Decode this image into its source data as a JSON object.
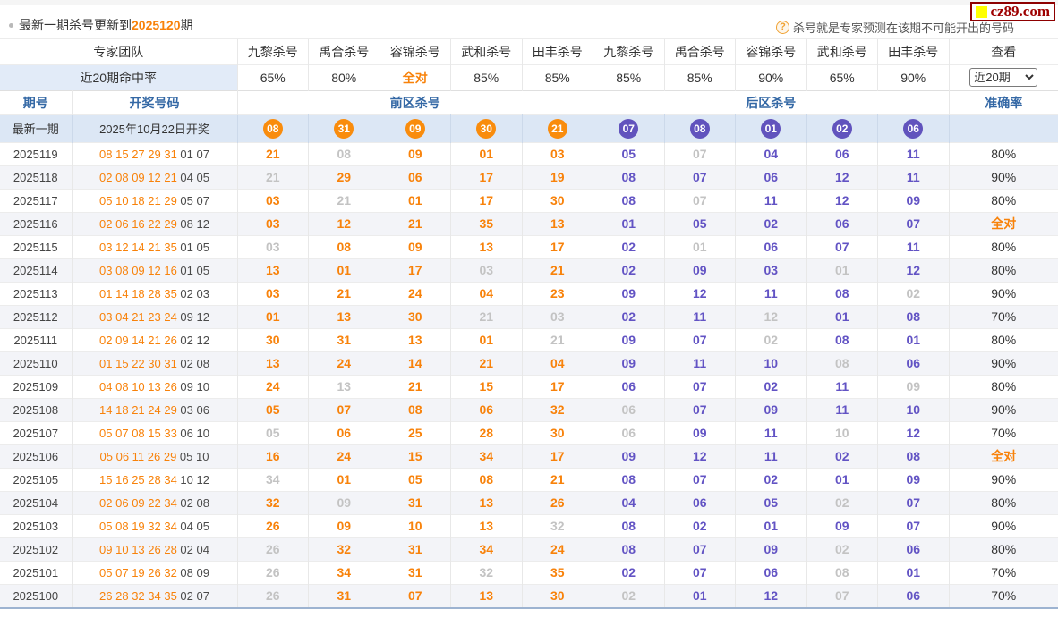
{
  "top_bar": {
    "update_prefix": "最新一期杀号更新到",
    "update_period": "2025120",
    "update_suffix": "期",
    "logo_text": "cz89.com",
    "tip_icon": "?",
    "tip_text": "杀号就是专家预测在该期不可能开出的号码"
  },
  "colors": {
    "accent_orange": "#f8820a",
    "ball_orange": "#f98c0d",
    "ball_purple": "#6153bd",
    "kill_purple": "#6253c4",
    "miss_gray": "#c3c3c3",
    "header_blue": "#3468a5",
    "latest_row_bg": "#dce7f5",
    "logo_red": "#9e0000",
    "logo_yellow": "#ffff00"
  },
  "table": {
    "expert_team_label": "专家团队",
    "experts": [
      "九黎杀号",
      "禹合杀号",
      "容锦杀号",
      "武和杀号",
      "田丰杀号",
      "九黎杀号",
      "禹合杀号",
      "容锦杀号",
      "武和杀号",
      "田丰杀号"
    ],
    "view_label": "查看",
    "hit_rate_label": "近20期命中率",
    "hit_rates": [
      {
        "v": "65%"
      },
      {
        "v": "80%"
      },
      {
        "v": "全对",
        "full": true
      },
      {
        "v": "85%"
      },
      {
        "v": "85%"
      },
      {
        "v": "85%"
      },
      {
        "v": "85%"
      },
      {
        "v": "90%"
      },
      {
        "v": "65%"
      },
      {
        "v": "90%"
      }
    ],
    "view_select_value": "近20期",
    "col_period": "期号",
    "col_draw": "开奖号码",
    "col_front": "前区杀号",
    "col_back": "后区杀号",
    "col_accuracy": "准确率",
    "latest": {
      "label": "最新一期",
      "draw_date": "2025年10月22日开奖",
      "front_balls": [
        "08",
        "31",
        "09",
        "30",
        "21"
      ],
      "back_balls": [
        "07",
        "08",
        "01",
        "02",
        "06"
      ]
    },
    "rows": [
      {
        "period": "2025119",
        "draw_front": "08 15 27 29 31",
        "draw_back": "01 07",
        "front": [
          {
            "n": "21"
          },
          {
            "n": "08",
            "miss": true
          },
          {
            "n": "09"
          },
          {
            "n": "01"
          },
          {
            "n": "03"
          }
        ],
        "back": [
          {
            "n": "05"
          },
          {
            "n": "07",
            "miss": true
          },
          {
            "n": "04"
          },
          {
            "n": "06"
          },
          {
            "n": "11"
          }
        ],
        "acc": "80%"
      },
      {
        "period": "2025118",
        "draw_front": "02 08 09 12 21",
        "draw_back": "04 05",
        "front": [
          {
            "n": "21",
            "miss": true
          },
          {
            "n": "29"
          },
          {
            "n": "06"
          },
          {
            "n": "17"
          },
          {
            "n": "19"
          }
        ],
        "back": [
          {
            "n": "08"
          },
          {
            "n": "07"
          },
          {
            "n": "06"
          },
          {
            "n": "12"
          },
          {
            "n": "11"
          }
        ],
        "acc": "90%"
      },
      {
        "period": "2025117",
        "draw_front": "05 10 18 21 29",
        "draw_back": "05 07",
        "front": [
          {
            "n": "03"
          },
          {
            "n": "21",
            "miss": true
          },
          {
            "n": "01"
          },
          {
            "n": "17"
          },
          {
            "n": "30"
          }
        ],
        "back": [
          {
            "n": "08"
          },
          {
            "n": "07",
            "miss": true
          },
          {
            "n": "11"
          },
          {
            "n": "12"
          },
          {
            "n": "09"
          }
        ],
        "acc": "80%"
      },
      {
        "period": "2025116",
        "draw_front": "02 06 16 22 29",
        "draw_back": "08 12",
        "front": [
          {
            "n": "03"
          },
          {
            "n": "12"
          },
          {
            "n": "21"
          },
          {
            "n": "35"
          },
          {
            "n": "13"
          }
        ],
        "back": [
          {
            "n": "01"
          },
          {
            "n": "05"
          },
          {
            "n": "02"
          },
          {
            "n": "06"
          },
          {
            "n": "07"
          }
        ],
        "acc": "全对",
        "full": true
      },
      {
        "period": "2025115",
        "draw_front": "03 12 14 21 35",
        "draw_back": "01 05",
        "front": [
          {
            "n": "03",
            "miss": true
          },
          {
            "n": "08"
          },
          {
            "n": "09"
          },
          {
            "n": "13"
          },
          {
            "n": "17"
          }
        ],
        "back": [
          {
            "n": "02"
          },
          {
            "n": "01",
            "miss": true
          },
          {
            "n": "06"
          },
          {
            "n": "07"
          },
          {
            "n": "11"
          }
        ],
        "acc": "80%"
      },
      {
        "period": "2025114",
        "draw_front": "03 08 09 12 16",
        "draw_back": "01 05",
        "front": [
          {
            "n": "13"
          },
          {
            "n": "01"
          },
          {
            "n": "17"
          },
          {
            "n": "03",
            "miss": true
          },
          {
            "n": "21"
          }
        ],
        "back": [
          {
            "n": "02"
          },
          {
            "n": "09"
          },
          {
            "n": "03"
          },
          {
            "n": "01",
            "miss": true
          },
          {
            "n": "12"
          }
        ],
        "acc": "80%"
      },
      {
        "period": "2025113",
        "draw_front": "01 14 18 28 35",
        "draw_back": "02 03",
        "front": [
          {
            "n": "03"
          },
          {
            "n": "21"
          },
          {
            "n": "24"
          },
          {
            "n": "04"
          },
          {
            "n": "23"
          }
        ],
        "back": [
          {
            "n": "09"
          },
          {
            "n": "12"
          },
          {
            "n": "11"
          },
          {
            "n": "08"
          },
          {
            "n": "02",
            "miss": true
          }
        ],
        "acc": "90%"
      },
      {
        "period": "2025112",
        "draw_front": "03 04 21 23 24",
        "draw_back": "09 12",
        "front": [
          {
            "n": "01"
          },
          {
            "n": "13"
          },
          {
            "n": "30"
          },
          {
            "n": "21",
            "miss": true
          },
          {
            "n": "03",
            "miss": true
          }
        ],
        "back": [
          {
            "n": "02"
          },
          {
            "n": "11"
          },
          {
            "n": "12",
            "miss": true
          },
          {
            "n": "01"
          },
          {
            "n": "08"
          }
        ],
        "acc": "70%"
      },
      {
        "period": "2025111",
        "draw_front": "02 09 14 21 26",
        "draw_back": "02 12",
        "front": [
          {
            "n": "30"
          },
          {
            "n": "31"
          },
          {
            "n": "13"
          },
          {
            "n": "01"
          },
          {
            "n": "21",
            "miss": true
          }
        ],
        "back": [
          {
            "n": "09"
          },
          {
            "n": "07"
          },
          {
            "n": "02",
            "miss": true
          },
          {
            "n": "08"
          },
          {
            "n": "01"
          }
        ],
        "acc": "80%"
      },
      {
        "period": "2025110",
        "draw_front": "01 15 22 30 31",
        "draw_back": "02 08",
        "front": [
          {
            "n": "13"
          },
          {
            "n": "24"
          },
          {
            "n": "14"
          },
          {
            "n": "21"
          },
          {
            "n": "04"
          }
        ],
        "back": [
          {
            "n": "09"
          },
          {
            "n": "11"
          },
          {
            "n": "10"
          },
          {
            "n": "08",
            "miss": true
          },
          {
            "n": "06"
          }
        ],
        "acc": "90%"
      },
      {
        "period": "2025109",
        "draw_front": "04 08 10 13 26",
        "draw_back": "09 10",
        "front": [
          {
            "n": "24"
          },
          {
            "n": "13",
            "miss": true
          },
          {
            "n": "21"
          },
          {
            "n": "15"
          },
          {
            "n": "17"
          }
        ],
        "back": [
          {
            "n": "06"
          },
          {
            "n": "07"
          },
          {
            "n": "02"
          },
          {
            "n": "11"
          },
          {
            "n": "09",
            "miss": true
          }
        ],
        "acc": "80%"
      },
      {
        "period": "2025108",
        "draw_front": "14 18 21 24 29",
        "draw_back": "03 06",
        "front": [
          {
            "n": "05"
          },
          {
            "n": "07"
          },
          {
            "n": "08"
          },
          {
            "n": "06"
          },
          {
            "n": "32"
          }
        ],
        "back": [
          {
            "n": "06",
            "miss": true
          },
          {
            "n": "07"
          },
          {
            "n": "09"
          },
          {
            "n": "11"
          },
          {
            "n": "10"
          }
        ],
        "acc": "90%"
      },
      {
        "period": "2025107",
        "draw_front": "05 07 08 15 33",
        "draw_back": "06 10",
        "front": [
          {
            "n": "05",
            "miss": true
          },
          {
            "n": "06"
          },
          {
            "n": "25"
          },
          {
            "n": "28"
          },
          {
            "n": "30"
          }
        ],
        "back": [
          {
            "n": "06",
            "miss": true
          },
          {
            "n": "09"
          },
          {
            "n": "11"
          },
          {
            "n": "10",
            "miss": true
          },
          {
            "n": "12"
          }
        ],
        "acc": "70%"
      },
      {
        "period": "2025106",
        "draw_front": "05 06 11 26 29",
        "draw_back": "05 10",
        "front": [
          {
            "n": "16"
          },
          {
            "n": "24"
          },
          {
            "n": "15"
          },
          {
            "n": "34"
          },
          {
            "n": "17"
          }
        ],
        "back": [
          {
            "n": "09"
          },
          {
            "n": "12"
          },
          {
            "n": "11"
          },
          {
            "n": "02"
          },
          {
            "n": "08"
          }
        ],
        "acc": "全对",
        "full": true
      },
      {
        "period": "2025105",
        "draw_front": "15 16 25 28 34",
        "draw_back": "10 12",
        "front": [
          {
            "n": "34",
            "miss": true
          },
          {
            "n": "01"
          },
          {
            "n": "05"
          },
          {
            "n": "08"
          },
          {
            "n": "21"
          }
        ],
        "back": [
          {
            "n": "08"
          },
          {
            "n": "07"
          },
          {
            "n": "02"
          },
          {
            "n": "01"
          },
          {
            "n": "09"
          }
        ],
        "acc": "90%"
      },
      {
        "period": "2025104",
        "draw_front": "02 06 09 22 34",
        "draw_back": "02 08",
        "front": [
          {
            "n": "32"
          },
          {
            "n": "09",
            "miss": true
          },
          {
            "n": "31"
          },
          {
            "n": "13"
          },
          {
            "n": "26"
          }
        ],
        "back": [
          {
            "n": "04"
          },
          {
            "n": "06"
          },
          {
            "n": "05"
          },
          {
            "n": "02",
            "miss": true
          },
          {
            "n": "07"
          }
        ],
        "acc": "80%"
      },
      {
        "period": "2025103",
        "draw_front": "05 08 19 32 34",
        "draw_back": "04 05",
        "front": [
          {
            "n": "26"
          },
          {
            "n": "09"
          },
          {
            "n": "10"
          },
          {
            "n": "13"
          },
          {
            "n": "32",
            "miss": true
          }
        ],
        "back": [
          {
            "n": "08"
          },
          {
            "n": "02"
          },
          {
            "n": "01"
          },
          {
            "n": "09"
          },
          {
            "n": "07"
          }
        ],
        "acc": "90%"
      },
      {
        "period": "2025102",
        "draw_front": "09 10 13 26 28",
        "draw_back": "02 04",
        "front": [
          {
            "n": "26",
            "miss": true
          },
          {
            "n": "32"
          },
          {
            "n": "31"
          },
          {
            "n": "34"
          },
          {
            "n": "24"
          }
        ],
        "back": [
          {
            "n": "08"
          },
          {
            "n": "07"
          },
          {
            "n": "09"
          },
          {
            "n": "02",
            "miss": true
          },
          {
            "n": "06"
          }
        ],
        "acc": "80%"
      },
      {
        "period": "2025101",
        "draw_front": "05 07 19 26 32",
        "draw_back": "08 09",
        "front": [
          {
            "n": "26",
            "miss": true
          },
          {
            "n": "34"
          },
          {
            "n": "31"
          },
          {
            "n": "32",
            "miss": true
          },
          {
            "n": "35"
          }
        ],
        "back": [
          {
            "n": "02"
          },
          {
            "n": "07"
          },
          {
            "n": "06"
          },
          {
            "n": "08",
            "miss": true
          },
          {
            "n": "01"
          }
        ],
        "acc": "70%"
      },
      {
        "period": "2025100",
        "draw_front": "26 28 32 34 35",
        "draw_back": "02 07",
        "front": [
          {
            "n": "26",
            "miss": true
          },
          {
            "n": "31"
          },
          {
            "n": "07"
          },
          {
            "n": "13"
          },
          {
            "n": "30"
          }
        ],
        "back": [
          {
            "n": "02",
            "miss": true
          },
          {
            "n": "01"
          },
          {
            "n": "12"
          },
          {
            "n": "07",
            "miss": true
          },
          {
            "n": "06"
          }
        ],
        "acc": "70%"
      }
    ]
  }
}
